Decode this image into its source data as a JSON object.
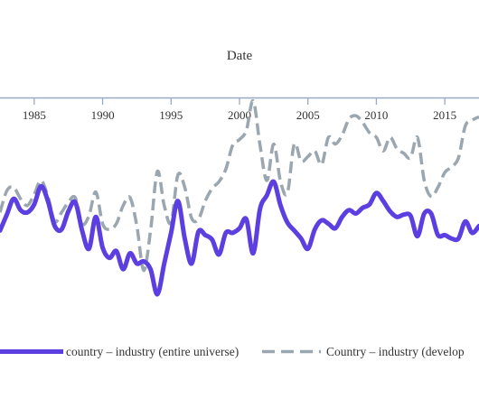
{
  "chart_data": {
    "type": "line",
    "title": "",
    "xlabel": "Date",
    "ylabel": "",
    "x_axis_position": "top",
    "xlim": [
      1982.5,
      2017.5
    ],
    "ylim": [
      0,
      1
    ],
    "x_ticks": [
      1985,
      1990,
      1995,
      2000,
      2005,
      2010,
      2015
    ],
    "x_tick_labels": [
      "1985",
      "1990",
      "1995",
      "2000",
      "2005",
      "2010",
      "2015"
    ],
    "grid": false,
    "legend_position": "bottom",
    "series": [
      {
        "name": "country – industry (entire universe)",
        "color": "#5b3fe0",
        "dash": "solid",
        "points": [
          [
            1982.5,
            0.585
          ],
          [
            1983.0,
            0.515
          ],
          [
            1983.5,
            0.445
          ],
          [
            1984.0,
            0.495
          ],
          [
            1984.5,
            0.505
          ],
          [
            1985.0,
            0.47
          ],
          [
            1985.5,
            0.39
          ],
          [
            1986.0,
            0.455
          ],
          [
            1986.5,
            0.565
          ],
          [
            1987.0,
            0.58
          ],
          [
            1987.5,
            0.5
          ],
          [
            1988.0,
            0.46
          ],
          [
            1988.5,
            0.585
          ],
          [
            1989.0,
            0.665
          ],
          [
            1989.5,
            0.525
          ],
          [
            1990.0,
            0.66
          ],
          [
            1990.5,
            0.705
          ],
          [
            1991.0,
            0.675
          ],
          [
            1991.5,
            0.755
          ],
          [
            1992.0,
            0.685
          ],
          [
            1992.5,
            0.73
          ],
          [
            1993.0,
            0.72
          ],
          [
            1993.5,
            0.755
          ],
          [
            1994.0,
            0.865
          ],
          [
            1994.5,
            0.73
          ],
          [
            1995.0,
            0.595
          ],
          [
            1995.5,
            0.455
          ],
          [
            1996.0,
            0.62
          ],
          [
            1996.5,
            0.73
          ],
          [
            1997.0,
            0.59
          ],
          [
            1997.5,
            0.605
          ],
          [
            1998.0,
            0.625
          ],
          [
            1998.5,
            0.69
          ],
          [
            1999.0,
            0.595
          ],
          [
            1999.5,
            0.595
          ],
          [
            2000.0,
            0.575
          ],
          [
            2000.5,
            0.535
          ],
          [
            2001.0,
            0.685
          ],
          [
            2001.5,
            0.49
          ],
          [
            2002.0,
            0.43
          ],
          [
            2002.5,
            0.37
          ],
          [
            2003.0,
            0.475
          ],
          [
            2003.5,
            0.55
          ],
          [
            2004.0,
            0.585
          ],
          [
            2004.5,
            0.62
          ],
          [
            2005.0,
            0.665
          ],
          [
            2005.5,
            0.58
          ],
          [
            2006.0,
            0.54
          ],
          [
            2006.5,
            0.555
          ],
          [
            2007.0,
            0.575
          ],
          [
            2007.5,
            0.525
          ],
          [
            2008.0,
            0.495
          ],
          [
            2008.5,
            0.51
          ],
          [
            2009.0,
            0.485
          ],
          [
            2009.5,
            0.47
          ],
          [
            2010.0,
            0.42
          ],
          [
            2010.5,
            0.455
          ],
          [
            2011.0,
            0.5
          ],
          [
            2011.5,
            0.525
          ],
          [
            2012.0,
            0.515
          ],
          [
            2012.5,
            0.52
          ],
          [
            2013.0,
            0.61
          ],
          [
            2013.5,
            0.51
          ],
          [
            2014.0,
            0.51
          ],
          [
            2014.5,
            0.605
          ],
          [
            2015.0,
            0.605
          ],
          [
            2015.5,
            0.62
          ],
          [
            2016.0,
            0.62
          ],
          [
            2016.5,
            0.545
          ],
          [
            2017.0,
            0.595
          ],
          [
            2017.5,
            0.565
          ]
        ]
      },
      {
        "name": "Country – industry (develop",
        "color": "#9aa6b0",
        "dash": "dashed",
        "points": [
          [
            1982.5,
            0.505
          ],
          [
            1983.0,
            0.41
          ],
          [
            1983.5,
            0.395
          ],
          [
            1984.0,
            0.445
          ],
          [
            1984.5,
            0.475
          ],
          [
            1985.0,
            0.425
          ],
          [
            1985.5,
            0.365
          ],
          [
            1986.0,
            0.435
          ],
          [
            1986.5,
            0.545
          ],
          [
            1987.0,
            0.505
          ],
          [
            1987.5,
            0.46
          ],
          [
            1988.0,
            0.44
          ],
          [
            1988.5,
            0.555
          ],
          [
            1989.0,
            0.52
          ],
          [
            1989.5,
            0.415
          ],
          [
            1990.0,
            0.555
          ],
          [
            1990.5,
            0.58
          ],
          [
            1991.0,
            0.555
          ],
          [
            1991.5,
            0.475
          ],
          [
            1992.0,
            0.44
          ],
          [
            1992.5,
            0.565
          ],
          [
            1993.0,
            0.76
          ],
          [
            1993.5,
            0.585
          ],
          [
            1994.0,
            0.325
          ],
          [
            1994.5,
            0.475
          ],
          [
            1995.0,
            0.55
          ],
          [
            1995.5,
            0.34
          ],
          [
            1996.0,
            0.395
          ],
          [
            1996.5,
            0.53
          ],
          [
            1997.0,
            0.535
          ],
          [
            1997.5,
            0.455
          ],
          [
            1998.0,
            0.4
          ],
          [
            1998.5,
            0.37
          ],
          [
            1999.0,
            0.315
          ],
          [
            1999.5,
            0.21
          ],
          [
            2000.0,
            0.185
          ],
          [
            2000.5,
            0.145
          ],
          [
            2001.0,
            0.015
          ],
          [
            2001.5,
            0.21
          ],
          [
            2002.0,
            0.365
          ],
          [
            2002.5,
            0.205
          ],
          [
            2003.0,
            0.37
          ],
          [
            2003.5,
            0.42
          ],
          [
            2004.0,
            0.205
          ],
          [
            2004.5,
            0.28
          ],
          [
            2005.0,
            0.26
          ],
          [
            2005.5,
            0.235
          ],
          [
            2006.0,
            0.295
          ],
          [
            2006.5,
            0.175
          ],
          [
            2007.0,
            0.205
          ],
          [
            2007.5,
            0.165
          ],
          [
            2008.0,
            0.095
          ],
          [
            2008.5,
            0.08
          ],
          [
            2009.0,
            0.11
          ],
          [
            2009.5,
            0.155
          ],
          [
            2010.0,
            0.175
          ],
          [
            2010.5,
            0.235
          ],
          [
            2011.0,
            0.175
          ],
          [
            2011.5,
            0.225
          ],
          [
            2012.0,
            0.245
          ],
          [
            2012.5,
            0.265
          ],
          [
            2013.0,
            0.175
          ],
          [
            2013.5,
            0.365
          ],
          [
            2014.0,
            0.435
          ],
          [
            2014.5,
            0.395
          ],
          [
            2015.0,
            0.33
          ],
          [
            2015.5,
            0.305
          ],
          [
            2016.0,
            0.265
          ],
          [
            2016.5,
            0.125
          ],
          [
            2017.0,
            0.1
          ],
          [
            2017.5,
            0.085
          ]
        ]
      }
    ]
  }
}
